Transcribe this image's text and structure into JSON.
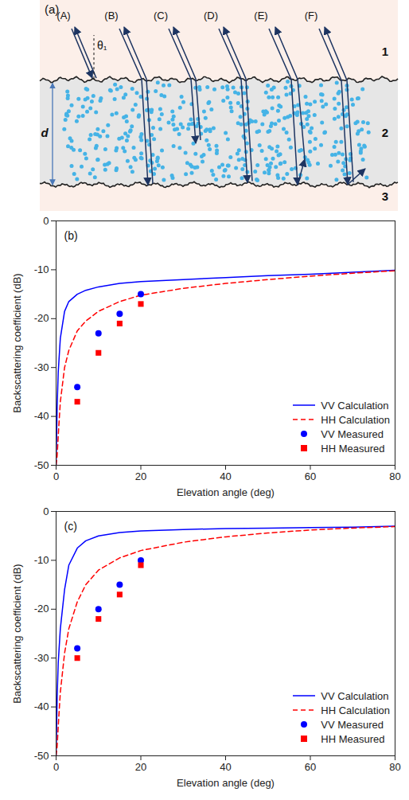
{
  "diagram": {
    "panel": "(a)",
    "rays": [
      "(A)",
      "(B)",
      "(C)",
      "(D)",
      "(E)",
      "(F)"
    ],
    "angle": "θ₁",
    "thickness": "d",
    "layers": [
      "1",
      "2",
      "3"
    ]
  },
  "chart_data": [
    {
      "type": "line",
      "title": "(b)",
      "x_label": "Elevation angle (deg)",
      "y_label": "Backscattering coefficient (dB)",
      "xlim": [
        0,
        80
      ],
      "xticks": [
        0,
        20,
        40,
        60,
        80
      ],
      "ylim": [
        -50,
        0
      ],
      "yticks": [
        -50,
        -40,
        -30,
        -20,
        -10,
        0
      ],
      "legend": "lower right",
      "series": [
        {
          "name": "VV Calculation",
          "type": "line",
          "color": "#0000ff",
          "line_style": "solid",
          "x": [
            0,
            0.25,
            0.5,
            1,
            2,
            3,
            5,
            7,
            10,
            15,
            20,
            30,
            40,
            50,
            60,
            70,
            80
          ],
          "values": [
            -50,
            -38,
            -31,
            -24,
            -18.5,
            -16.5,
            -15,
            -14.2,
            -13.5,
            -12.8,
            -12.4,
            -12,
            -11.6,
            -11.2,
            -10.9,
            -10.5,
            -10.1
          ]
        },
        {
          "name": "HH Calculation",
          "type": "line",
          "color": "#ff0000",
          "line_style": "dashed",
          "x": [
            0,
            0.25,
            0.5,
            1,
            2,
            3,
            5,
            7,
            10,
            15,
            20,
            30,
            40,
            50,
            60,
            70,
            80
          ],
          "values": [
            -50,
            -48,
            -44,
            -37,
            -30,
            -26.5,
            -22.5,
            -20.5,
            -18.5,
            -16.5,
            -15.2,
            -13.8,
            -12.8,
            -12,
            -11.3,
            -10.7,
            -10.2
          ]
        },
        {
          "name": "VV Measured",
          "type": "scatter",
          "color": "#0000ff",
          "marker": "circle",
          "x": [
            5,
            10,
            15,
            20
          ],
          "values": [
            -34,
            -23,
            -19,
            -15
          ]
        },
        {
          "name": "HH Measured",
          "type": "scatter",
          "color": "#ff0000",
          "marker": "square",
          "x": [
            5,
            10,
            15,
            20
          ],
          "values": [
            -37,
            -27,
            -21,
            -17
          ]
        }
      ]
    },
    {
      "type": "line",
      "title": "(c)",
      "x_label": "Elevation angle (deg)",
      "y_label": "Backscattering coefficient (dB)",
      "xlim": [
        0,
        80
      ],
      "xticks": [
        0,
        20,
        40,
        60,
        80
      ],
      "ylim": [
        -50,
        0
      ],
      "yticks": [
        -50,
        -40,
        -30,
        -20,
        -10,
        0
      ],
      "legend": "lower right",
      "series": [
        {
          "name": "VV Calculation",
          "type": "line",
          "color": "#0000ff",
          "line_style": "solid",
          "x": [
            0,
            0.25,
            0.5,
            1,
            2,
            3,
            5,
            7,
            10,
            15,
            20,
            30,
            40,
            50,
            60,
            70,
            80
          ],
          "values": [
            -50,
            -38,
            -31,
            -24,
            -16,
            -11,
            -7.5,
            -6,
            -5,
            -4.3,
            -4,
            -3.7,
            -3.5,
            -3.4,
            -3.3,
            -3.2,
            -3
          ]
        },
        {
          "name": "HH Calculation",
          "type": "line",
          "color": "#ff0000",
          "line_style": "dashed",
          "x": [
            0,
            0.25,
            0.5,
            1,
            2,
            3,
            5,
            7,
            10,
            15,
            20,
            30,
            40,
            50,
            60,
            70,
            80
          ],
          "values": [
            -50,
            -48,
            -44,
            -37,
            -29,
            -24,
            -18.5,
            -15,
            -12,
            -9.5,
            -8,
            -6.3,
            -5.2,
            -4.4,
            -3.8,
            -3.4,
            -3.1
          ]
        },
        {
          "name": "VV Measured",
          "type": "scatter",
          "color": "#0000ff",
          "marker": "circle",
          "x": [
            5,
            10,
            15,
            20
          ],
          "values": [
            -28,
            -20,
            -15,
            -10
          ]
        },
        {
          "name": "HH Measured",
          "type": "scatter",
          "color": "#ff0000",
          "marker": "square",
          "x": [
            5,
            10,
            15,
            20
          ],
          "values": [
            -30,
            -22,
            -17,
            -11
          ]
        }
      ]
    }
  ]
}
